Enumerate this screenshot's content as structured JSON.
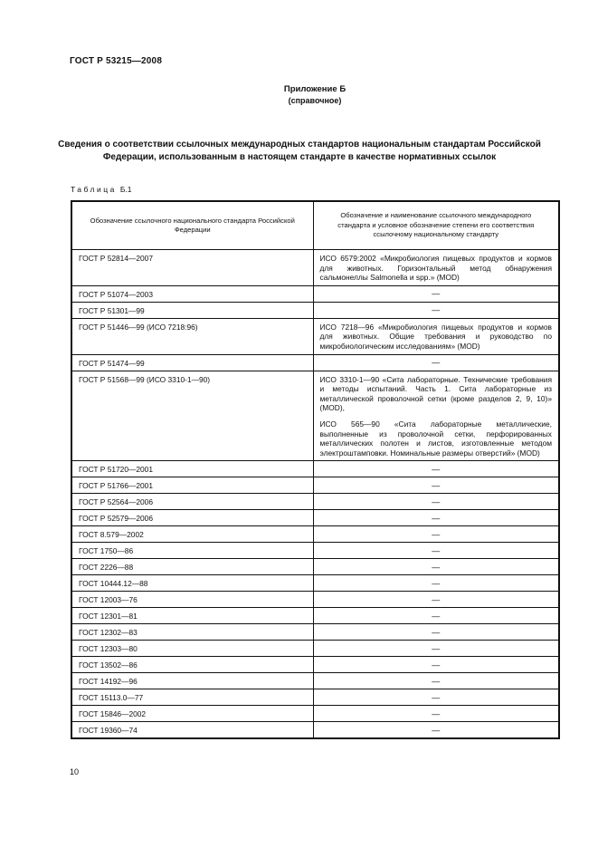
{
  "page": {
    "doc_code": "ГОСТ Р 53215—2008",
    "page_number": "10"
  },
  "annex": {
    "label": "Приложение Б",
    "note": "(справочное)"
  },
  "title": "Сведения о соответствии ссылочных международных стандартов национальным стандартам Российской Федерации, использованным в настоящем стандарте в качестве нормативных ссылок",
  "table": {
    "label_word": "Таблица",
    "label_number": "Б.1",
    "columns": [
      "Обозначение ссылочного национального стандарта Российской Федерации",
      "Обозначение и наименование ссылочного международного стандарта и условное обозначение степени его соответствия ссылочному национальному стандарту"
    ],
    "empty_marker": "—",
    "rows": [
      {
        "national": "ГОСТ Р 52814—2007",
        "international": [
          "ИСО 6579:2002 «Микробиология пищевых продуктов и кормов для животных. Горизонтальный метод обнаружения сальмонеллы Salmonella и spp.» (MOD)"
        ]
      },
      {
        "national": "ГОСТ Р 51074—2003",
        "international": [
          "—"
        ]
      },
      {
        "national": "ГОСТ Р 51301—99",
        "international": [
          "—"
        ]
      },
      {
        "national": "ГОСТ Р 51446—99 (ИСО 7218:96)",
        "international": [
          "ИСО 7218—96 «Микробиология пищевых продуктов и кормов для животных. Общие требования и руководство по микробиологическим исследованиям» (MOD)"
        ]
      },
      {
        "national": "ГОСТ Р 51474—99",
        "international": [
          "—"
        ]
      },
      {
        "national": "ГОСТ Р 51568—99 (ИСО 3310-1—90)",
        "international": [
          "ИСО 3310-1—90 «Сита лабораторные. Технические требования и методы испытаний. Часть 1. Сита лабораторные из металлической проволочной сетки (кроме разделов 2, 9, 10)» (MOD),",
          "ИСО 565—90 «Сита лабораторные металлические, выполненные из проволочной сетки, перфорированных металлических полотен и листов, изготовленные методом электроштамповки. Номинальные размеры отверстий» (MOD)"
        ]
      },
      {
        "national": "ГОСТ Р 51720—2001",
        "international": [
          "—"
        ]
      },
      {
        "national": "ГОСТ Р 51766—2001",
        "international": [
          "—"
        ]
      },
      {
        "national": "ГОСТ Р 52564—2006",
        "international": [
          "—"
        ]
      },
      {
        "national": "ГОСТ Р 52579—2006",
        "international": [
          "—"
        ]
      },
      {
        "national": "ГОСТ 8.579—2002",
        "international": [
          "—"
        ]
      },
      {
        "national": "ГОСТ 1750—86",
        "international": [
          "—"
        ]
      },
      {
        "national": "ГОСТ 2226—88",
        "international": [
          "—"
        ]
      },
      {
        "national": "ГОСТ 10444.12—88",
        "international": [
          "—"
        ]
      },
      {
        "national": "ГОСТ 12003—76",
        "international": [
          "—"
        ]
      },
      {
        "national": "ГОСТ 12301—81",
        "international": [
          "—"
        ]
      },
      {
        "national": "ГОСТ 12302—83",
        "international": [
          "—"
        ]
      },
      {
        "national": "ГОСТ 12303—80",
        "international": [
          "—"
        ]
      },
      {
        "national": "ГОСТ 13502—86",
        "international": [
          "—"
        ]
      },
      {
        "national": "ГОСТ 14192—96",
        "international": [
          "—"
        ]
      },
      {
        "national": "ГОСТ 15113.0—77",
        "international": [
          "—"
        ]
      },
      {
        "national": "ГОСТ 15846—2002",
        "international": [
          "—"
        ]
      },
      {
        "national": "ГОСТ 19360—74",
        "international": [
          "—"
        ]
      }
    ]
  }
}
